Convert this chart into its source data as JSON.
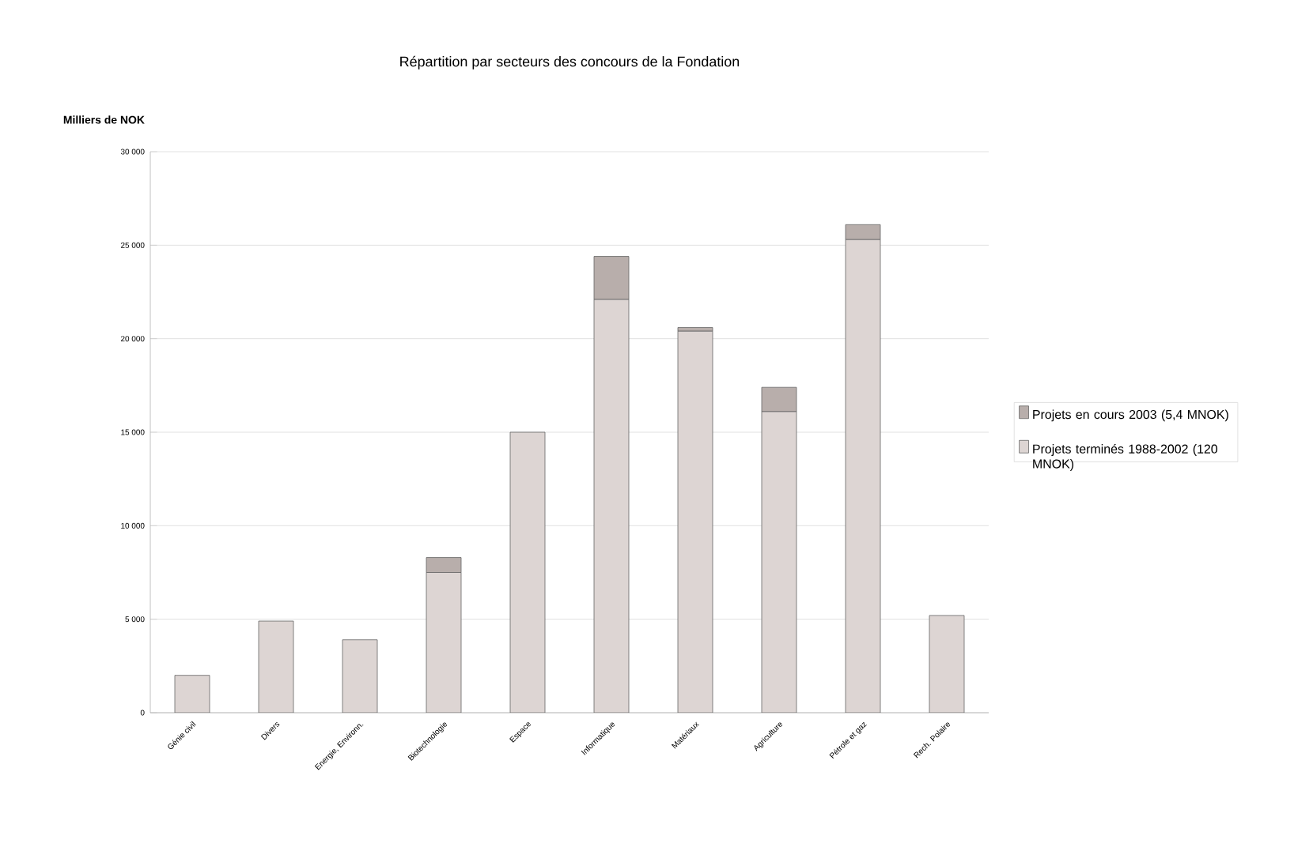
{
  "chart_data": {
    "type": "bar",
    "stacked": true,
    "title": "Répartition par secteurs des concours de la Fondation",
    "ylabel": "Milliers de NOK",
    "categories": [
      "Génie civil",
      "Divers",
      "Energie, Environn.",
      "Biotechnologie",
      "Espace",
      "Informatique",
      "Matériaux",
      "Agriculture",
      "Pétrole et gaz",
      "Rech. Polaire"
    ],
    "series": [
      {
        "name": "Projets terminés 1988-2002 (120 MNOK)",
        "color": "#ddd5d3",
        "values": [
          2000,
          4900,
          3900,
          7500,
          15000,
          22100,
          20400,
          16100,
          25300,
          5200
        ]
      },
      {
        "name": "Projets en cours 2003 (5,4 MNOK)",
        "color": "#b8aeab",
        "values": [
          null,
          null,
          null,
          800,
          null,
          2300,
          200,
          1300,
          800,
          null
        ]
      }
    ],
    "ylim": [
      0,
      30000
    ],
    "yticks": [
      {
        "value": 0,
        "label": "0"
      },
      {
        "value": 5000,
        "label": "5 000"
      },
      {
        "value": 10000,
        "label": "10 000"
      },
      {
        "value": 15000,
        "label": "15 000"
      },
      {
        "value": 20000,
        "label": "20 000"
      },
      {
        "value": 25000,
        "label": "25 000"
      },
      {
        "value": 30000,
        "label": "30 000"
      }
    ],
    "grid": "y",
    "legend": "right"
  }
}
